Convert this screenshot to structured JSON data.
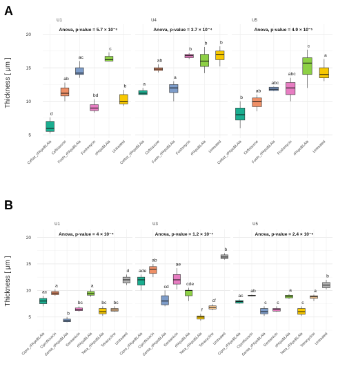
{
  "chart_data": [
    {
      "type": "box",
      "panel_label": "A",
      "ylabel": "Thickness [ μm ]",
      "ylim": [
        4.5,
        21.5
      ],
      "yticks": [
        5,
        10,
        15,
        20
      ],
      "grid": true,
      "facets": [
        {
          "title": "U1",
          "anova": "Anova, p-value = 5.7 × 10⁻⁶",
          "groups": [
            {
              "label": "Ceftaz_rPApoBLAla",
              "whisker_low": 5.2,
              "q1": 5.5,
              "median": 6.0,
              "q3": 7.0,
              "whisker_high": 7.6,
              "letter": "d",
              "color": "#1AAE90"
            },
            {
              "label": "Ceftriaxone",
              "whisker_low": 10.0,
              "q1": 10.8,
              "median": 11.2,
              "q3": 12.0,
              "whisker_high": 12.8,
              "letter": "ab",
              "color": "#EE8F66"
            },
            {
              "label": "Fosfo_rPApoBLAla",
              "whisker_low": 13.5,
              "q1": 14.0,
              "median": 14.2,
              "q3": 15.0,
              "whisker_high": 16.0,
              "letter": "ac",
              "color": "#7D9CC9"
            },
            {
              "label": "Fosfomycin",
              "whisker_low": 8.3,
              "q1": 8.6,
              "median": 9.0,
              "q3": 9.5,
              "whisker_high": 10.3,
              "letter": "bd",
              "color": "#E77DC2"
            },
            {
              "label": "rPApoBLAla",
              "whisker_low": 16.0,
              "q1": 16.0,
              "median": 16.2,
              "q3": 16.7,
              "whisker_high": 17.3,
              "letter": "c",
              "color": "#8DD045"
            },
            {
              "label": "Untreated",
              "whisker_low": 9.3,
              "q1": 9.6,
              "median": 10.0,
              "q3": 11.0,
              "whisker_high": 11.7,
              "letter": "b",
              "color": "#F7C800"
            }
          ]
        },
        {
          "title": "U4",
          "anova": "Anova, p-value = 3.7 × 10⁻⁴",
          "groups": [
            {
              "label": "Ceftaz_rPApoBLAla",
              "whisker_low": 11.0,
              "q1": 11.0,
              "median": 11.2,
              "q3": 11.6,
              "whisker_high": 12.0,
              "letter": "a",
              "color": "#1AAE90"
            },
            {
              "label": "Ceftriaxone",
              "whisker_low": 14.3,
              "q1": 14.6,
              "median": 14.8,
              "q3": 15.0,
              "whisker_high": 15.5,
              "letter": "ab",
              "color": "#EE8F66"
            },
            {
              "label": "Fosfo_rPApoBLAla",
              "whisker_low": 10.0,
              "q1": 11.3,
              "median": 12.0,
              "q3": 12.5,
              "whisker_high": 13.0,
              "letter": "a",
              "color": "#7D9CC9"
            },
            {
              "label": "Fosfomycin",
              "whisker_low": 16.3,
              "q1": 16.5,
              "median": 16.8,
              "q3": 17.0,
              "whisker_high": 17.2,
              "letter": "b",
              "color": "#E77DC2"
            },
            {
              "label": "rPApoBLAla",
              "whisker_low": 14.2,
              "q1": 15.2,
              "median": 16.0,
              "q3": 17.0,
              "whisker_high": 18.1,
              "letter": "b",
              "color": "#8DD045"
            },
            {
              "label": "Untreated",
              "whisker_low": 15.2,
              "q1": 16.2,
              "median": 17.0,
              "q3": 17.5,
              "whisker_high": 18.2,
              "letter": "b",
              "color": "#F7C800"
            }
          ]
        },
        {
          "title": "U5",
          "anova": "Anova, p-value = 4.9 × 10⁻⁵",
          "groups": [
            {
              "label": "Ceftaz_rPApoBLAla",
              "whisker_low": 6.0,
              "q1": 7.2,
              "median": 8.0,
              "q3": 9.0,
              "whisker_high": 10.0,
              "letter": "b",
              "color": "#1AAE90"
            },
            {
              "label": "Ceftriaxone",
              "whisker_low": 8.5,
              "q1": 9.2,
              "median": 10.0,
              "q3": 10.5,
              "whisker_high": 11.0,
              "letter": "ab",
              "color": "#EE8F66"
            },
            {
              "label": "Fosfo_rPApoBLAla",
              "whisker_low": 11.5,
              "q1": 11.6,
              "median": 11.8,
              "q3": 12.1,
              "whisker_high": 12.2,
              "letter": "abc",
              "color": "#7D9CC9"
            },
            {
              "label": "Fosfomycin",
              "whisker_low": 10.0,
              "q1": 11.0,
              "median": 12.0,
              "q3": 12.8,
              "whisker_high": 13.5,
              "letter": "abc",
              "color": "#E77DC2"
            },
            {
              "label": "rPApoBLAla",
              "whisker_low": 12.0,
              "q1": 14.0,
              "median": 15.7,
              "q3": 16.5,
              "whisker_high": 17.7,
              "letter": "c",
              "color": "#8DD045"
            },
            {
              "label": "Untreated",
              "whisker_low": 13.0,
              "q1": 13.5,
              "median": 14.0,
              "q3": 15.0,
              "whisker_high": 16.3,
              "letter": "a",
              "color": "#F7C800"
            }
          ]
        }
      ]
    },
    {
      "type": "box",
      "panel_label": "B",
      "ylabel": "Thickness [ μm ]",
      "ylim": [
        2.5,
        21.5
      ],
      "yticks": [
        5,
        10,
        15,
        20
      ],
      "grid": true,
      "facets": [
        {
          "title": "U1",
          "anova": "Anova, p-value = 4 × 10⁻⁴",
          "groups": [
            {
              "label": "Cipro_rPApoBLAla",
              "whisker_low": 7.0,
              "q1": 7.5,
              "median": 8.0,
              "q3": 8.5,
              "whisker_high": 9.0,
              "letter": "ac",
              "color": "#1AAE90"
            },
            {
              "label": "Ciprofloxacin",
              "whisker_low": 9.0,
              "q1": 9.2,
              "median": 9.5,
              "q3": 9.8,
              "whisker_high": 10.2,
              "letter": "a",
              "color": "#EE8F66"
            },
            {
              "label": "Genta_rPApoBLAla",
              "whisker_low": 4.0,
              "q1": 4.1,
              "median": 4.3,
              "q3": 4.6,
              "whisker_high": 5.0,
              "letter": "b",
              "color": "#7D9CC9"
            },
            {
              "label": "Gentamicin",
              "whisker_low": 6.0,
              "q1": 6.2,
              "median": 6.4,
              "q3": 6.7,
              "whisker_high": 7.0,
              "letter": "bc",
              "color": "#E77DC2"
            },
            {
              "label": "rPApoBLAla",
              "whisker_low": 8.8,
              "q1": 9.1,
              "median": 9.4,
              "q3": 9.8,
              "whisker_high": 10.2,
              "letter": "a",
              "color": "#8DD045"
            },
            {
              "label": "Tetra_rPApoBLAla",
              "whisker_low": 5.2,
              "q1": 5.6,
              "median": 6.0,
              "q3": 6.6,
              "whisker_high": 7.0,
              "letter": "bc",
              "color": "#F7C800"
            },
            {
              "label": "Tetracycline",
              "whisker_low": 6.0,
              "q1": 6.1,
              "median": 6.3,
              "q3": 6.6,
              "whisker_high": 7.0,
              "letter": "bc",
              "color": "#F5C794"
            },
            {
              "label": "Untreated",
              "whisker_low": 11.0,
              "q1": 11.4,
              "median": 12.0,
              "q3": 12.5,
              "whisker_high": 13.0,
              "letter": "d",
              "color": "#B4B4B4"
            }
          ]
        },
        {
          "title": "U3",
          "anova": "Anova, p-value = 1.2 × 10⁻⁷",
          "groups": [
            {
              "label": "Cipro_rPApoBLAla",
              "whisker_low": 10.0,
              "q1": 11.0,
              "median": 12.0,
              "q3": 12.5,
              "whisker_high": 13.0,
              "letter": "ade",
              "color": "#1AAE90"
            },
            {
              "label": "Ciprofloxacin",
              "whisker_low": 12.5,
              "q1": 13.2,
              "median": 14.0,
              "q3": 14.5,
              "whisker_high": 15.0,
              "letter": "ab",
              "color": "#EE8F66"
            },
            {
              "label": "Genta_rPApoBLAla",
              "whisker_low": 7.0,
              "q1": 7.3,
              "median": 8.0,
              "q3": 9.0,
              "whisker_high": 10.0,
              "letter": "cd",
              "color": "#7D9CC9"
            },
            {
              "label": "Gentamicin",
              "whisker_low": 10.2,
              "q1": 11.2,
              "median": 12.0,
              "q3": 13.0,
              "whisker_high": 14.2,
              "letter": "ae",
              "color": "#E77DC2"
            },
            {
              "label": "rPApoBLAla",
              "whisker_low": 8.0,
              "q1": 9.0,
              "median": 10.0,
              "q3": 10.0,
              "whisker_high": 10.5,
              "letter": "cde",
              "color": "#8DD045"
            },
            {
              "label": "Tetra_rPApoBLAla",
              "whisker_low": 4.3,
              "q1": 4.6,
              "median": 5.0,
              "q3": 5.2,
              "whisker_high": 5.6,
              "letter": "f",
              "color": "#F7C800"
            },
            {
              "label": "Tetracycline",
              "whisker_low": 6.3,
              "q1": 6.5,
              "median": 6.8,
              "q3": 7.1,
              "whisker_high": 7.4,
              "letter": "cf",
              "color": "#F5C794"
            },
            {
              "label": "Untreated",
              "whisker_low": 15.8,
              "q1": 16.0,
              "median": 16.3,
              "q3": 16.7,
              "whisker_high": 17.0,
              "letter": "b",
              "color": "#B4B4B4"
            }
          ]
        },
        {
          "title": "U5",
          "anova": "Anova, p-value = 2.4 × 10⁻⁶",
          "groups": [
            {
              "label": "Cipro_rPApoBLAla",
              "whisker_low": 7.5,
              "q1": 7.6,
              "median": 7.9,
              "q3": 8.1,
              "whisker_high": 8.3,
              "letter": "ac",
              "color": "#1AAE90"
            },
            {
              "label": "Ciprofloxacin",
              "whisker_low": 8.9,
              "q1": 9.0,
              "median": 9.0,
              "q3": 9.1,
              "whisker_high": 9.2,
              "letter": "ab",
              "color": "#EE8F66"
            },
            {
              "label": "Genta_rPApoBLAla",
              "whisker_low": 5.2,
              "q1": 5.6,
              "median": 6.0,
              "q3": 6.6,
              "whisker_high": 7.0,
              "letter": "c",
              "color": "#7D9CC9"
            },
            {
              "label": "Gentamicin",
              "whisker_low": 6.0,
              "q1": 6.1,
              "median": 6.4,
              "q3": 6.6,
              "whisker_high": 7.0,
              "letter": "c",
              "color": "#E77DC2"
            },
            {
              "label": "rPApoBLAla",
              "whisker_low": 8.4,
              "q1": 8.6,
              "median": 8.9,
              "q3": 9.1,
              "whisker_high": 9.3,
              "letter": "a",
              "color": "#8DD045"
            },
            {
              "label": "Tetra_rPApoBLAla",
              "whisker_low": 5.2,
              "q1": 5.5,
              "median": 6.0,
              "q3": 6.6,
              "whisker_high": 7.0,
              "letter": "c",
              "color": "#F7C800"
            },
            {
              "label": "Tetracycline",
              "whisker_low": 8.0,
              "q1": 8.5,
              "median": 8.8,
              "q3": 9.0,
              "whisker_high": 9.2,
              "letter": "a",
              "color": "#F5C794"
            },
            {
              "label": "Untreated",
              "whisker_low": 10.2,
              "q1": 10.5,
              "median": 11.0,
              "q3": 11.5,
              "whisker_high": 12.0,
              "letter": "b",
              "color": "#B4B4B4"
            }
          ]
        }
      ]
    }
  ]
}
